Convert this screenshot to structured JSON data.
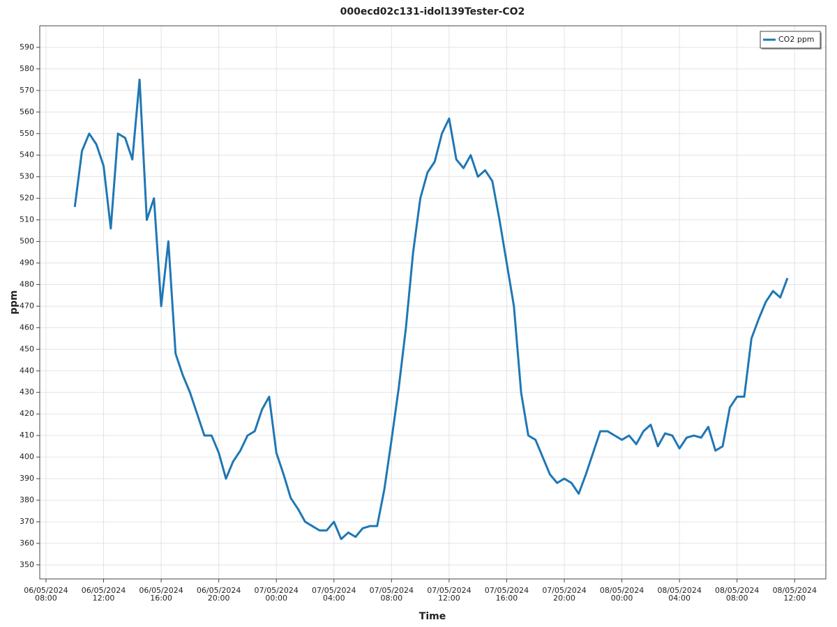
{
  "chart_data": {
    "type": "line",
    "title": "000ecd02c131-idol139Tester-CO2",
    "x_label": "Time",
    "y_label": "ppm",
    "legend": "upper right",
    "grid": true,
    "xlim": [
      "06/05/2024 07:34",
      "08/05/2024 14:10"
    ],
    "xticks": [
      "06/05/2024 08:00",
      "06/05/2024 12:00",
      "06/05/2024 16:00",
      "06/05/2024 20:00",
      "07/05/2024 00:00",
      "07/05/2024 04:00",
      "07/05/2024 08:00",
      "07/05/2024 12:00",
      "07/05/2024 16:00",
      "07/05/2024 20:00",
      "08/05/2024 00:00",
      "08/05/2024 04:00",
      "08/05/2024 08:00",
      "08/05/2024 12:00"
    ],
    "ylim": [
      343.5,
      600
    ],
    "yticks": [
      350,
      360,
      370,
      380,
      390,
      400,
      410,
      420,
      430,
      440,
      450,
      460,
      470,
      480,
      490,
      500,
      510,
      520,
      530,
      540,
      550,
      560,
      570,
      580,
      590
    ],
    "x": [
      "06/05/2024 10:00",
      "06/05/2024 10:30",
      "06/05/2024 11:00",
      "06/05/2024 11:30",
      "06/05/2024 12:00",
      "06/05/2024 12:30",
      "06/05/2024 13:00",
      "06/05/2024 13:30",
      "06/05/2024 14:00",
      "06/05/2024 14:30",
      "06/05/2024 15:00",
      "06/05/2024 15:30",
      "06/05/2024 16:00",
      "06/05/2024 16:30",
      "06/05/2024 17:00",
      "06/05/2024 17:30",
      "06/05/2024 18:00",
      "06/05/2024 18:30",
      "06/05/2024 19:00",
      "06/05/2024 19:30",
      "06/05/2024 20:00",
      "06/05/2024 20:30",
      "06/05/2024 21:00",
      "06/05/2024 21:30",
      "06/05/2024 22:00",
      "06/05/2024 22:30",
      "06/05/2024 23:00",
      "06/05/2024 23:30",
      "07/05/2024 00:00",
      "07/05/2024 00:30",
      "07/05/2024 01:00",
      "07/05/2024 01:30",
      "07/05/2024 02:00",
      "07/05/2024 02:30",
      "07/05/2024 03:00",
      "07/05/2024 03:30",
      "07/05/2024 04:00",
      "07/05/2024 04:30",
      "07/05/2024 05:00",
      "07/05/2024 05:30",
      "07/05/2024 06:00",
      "07/05/2024 06:30",
      "07/05/2024 07:00",
      "07/05/2024 07:30",
      "07/05/2024 08:00",
      "07/05/2024 08:30",
      "07/05/2024 09:00",
      "07/05/2024 09:30",
      "07/05/2024 10:00",
      "07/05/2024 10:30",
      "07/05/2024 11:00",
      "07/05/2024 11:30",
      "07/05/2024 12:00",
      "07/05/2024 12:30",
      "07/05/2024 13:00",
      "07/05/2024 13:30",
      "07/05/2024 14:00",
      "07/05/2024 14:30",
      "07/05/2024 15:00",
      "07/05/2024 15:30",
      "07/05/2024 16:00",
      "07/05/2024 16:30",
      "07/05/2024 17:00",
      "07/05/2024 17:30",
      "07/05/2024 18:00",
      "07/05/2024 18:30",
      "07/05/2024 19:00",
      "07/05/2024 19:30",
      "07/05/2024 20:00",
      "07/05/2024 20:30",
      "07/05/2024 21:00",
      "07/05/2024 21:30",
      "07/05/2024 22:00",
      "07/05/2024 22:30",
      "07/05/2024 23:00",
      "07/05/2024 23:30",
      "08/05/2024 00:00",
      "08/05/2024 00:30",
      "08/05/2024 01:00",
      "08/05/2024 01:30",
      "08/05/2024 02:00",
      "08/05/2024 02:30",
      "08/05/2024 03:00",
      "08/05/2024 03:30",
      "08/05/2024 04:00",
      "08/05/2024 04:30",
      "08/05/2024 05:00",
      "08/05/2024 05:30",
      "08/05/2024 06:00",
      "08/05/2024 06:30",
      "08/05/2024 07:00",
      "08/05/2024 07:30",
      "08/05/2024 08:00",
      "08/05/2024 08:30",
      "08/05/2024 09:00",
      "08/05/2024 09:30",
      "08/05/2024 10:00",
      "08/05/2024 10:30",
      "08/05/2024 11:00",
      "08/05/2024 11:30"
    ],
    "series": [
      {
        "name": "CO2 ppm",
        "color": "#1f77b4",
        "values": [
          516,
          542,
          550,
          545,
          535,
          506,
          550,
          548,
          538,
          575,
          510,
          520,
          470,
          500,
          448,
          438,
          430,
          420,
          410,
          410,
          402,
          390,
          398,
          403,
          410,
          412,
          422,
          428,
          402,
          392,
          381,
          376,
          370,
          368,
          366,
          366,
          370,
          362,
          365,
          363,
          367,
          368,
          368,
          385,
          408,
          432,
          460,
          495,
          520,
          532,
          537,
          550,
          557,
          538,
          534,
          540,
          530,
          533,
          528,
          510,
          490,
          470,
          430,
          410,
          408,
          400,
          392,
          388,
          390,
          388,
          383,
          392,
          402,
          412,
          412,
          410,
          408,
          410,
          406,
          412,
          415,
          405,
          411,
          410,
          404,
          409,
          410,
          409,
          414,
          403,
          405,
          423,
          428,
          428,
          455,
          464,
          472,
          477,
          474,
          483
        ]
      }
    ]
  }
}
